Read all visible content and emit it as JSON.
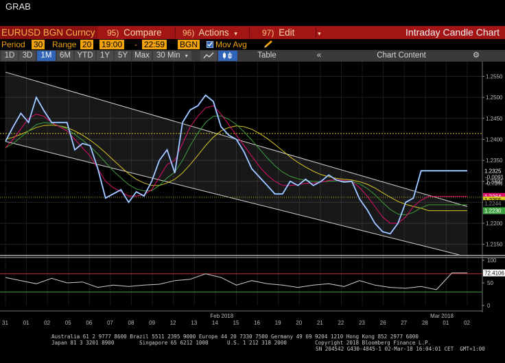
{
  "window": {
    "title": "GRAB"
  },
  "command_bar": {
    "security": "EURUSD BGN Curncy",
    "compare": {
      "num": "95)",
      "label": "Compare"
    },
    "actions": {
      "num": "96)",
      "label": "Actions"
    },
    "edit": {
      "num": "97)",
      "label": "Edit"
    },
    "chart_name": "Intraday Candle Chart"
  },
  "params": {
    "period_label": "Period",
    "period_value": "30",
    "range_label": "Range",
    "range_value": "20",
    "time_start": "19:00",
    "time_dash": "-",
    "time_end": "22:59",
    "source": "BGN",
    "mov_avg_label": "Mov Avg",
    "mov_avg_checked": true
  },
  "toolbar": {
    "buttons": [
      "1D",
      "3D",
      "1M",
      "6M",
      "YTD",
      "1Y",
      "5Y",
      "Max"
    ],
    "active": "1M",
    "interval": "30 Min",
    "table": "Table",
    "chart_content": "Chart Content"
  },
  "chart_data": {
    "type": "line",
    "security": "EURUSD BGN Curncy",
    "main_panel": {
      "yticks": [
        "1.2550",
        "1.2500",
        "1.2450",
        "1.2400",
        "1.2350",
        "1.2300",
        "1.2250",
        "1.2200",
        "1.2150"
      ],
      "ylim": [
        1.2125,
        1.2585
      ],
      "last_price": "1.2325",
      "net_change": "-0.0091",
      "pct_change": "-0.73%",
      "ma_tags": [
        "1.2264",
        "1.2255",
        "1.2244",
        "1.2230"
      ],
      "reference_lines": [
        1.2414,
        1.2262
      ],
      "x": [
        0,
        0.5,
        1,
        1.5,
        2,
        2.5,
        3,
        3.5,
        4,
        4.5,
        5,
        5.5,
        6,
        6.5,
        7,
        7.5,
        8,
        8.5,
        9,
        9.5,
        10,
        10.5,
        11,
        11.5,
        12,
        12.5,
        13,
        13.5,
        14,
        14.5,
        15,
        15.5,
        16,
        16.5,
        17,
        17.5,
        18,
        18.5,
        19,
        19.5,
        20,
        20.5,
        21,
        21.5,
        22,
        22.5,
        23,
        23.5,
        24,
        24.5,
        25,
        25.5,
        26,
        26.5,
        27,
        27.5,
        28,
        28.5,
        29,
        29.5,
        30
      ],
      "price": [
        1.2395,
        1.243,
        1.2462,
        1.244,
        1.25,
        1.2468,
        1.244,
        1.244,
        1.244,
        1.2375,
        1.239,
        1.2385,
        1.233,
        1.226,
        1.227,
        1.228,
        1.225,
        1.2275,
        1.2265,
        1.23,
        1.235,
        1.2375,
        1.232,
        1.244,
        1.247,
        1.248,
        1.2505,
        1.249,
        1.243,
        1.241,
        1.24,
        1.237,
        1.233,
        1.231,
        1.229,
        1.227,
        1.227,
        1.23,
        1.229,
        1.2305,
        1.229,
        1.23,
        1.2315,
        1.2303,
        1.2298,
        1.23,
        1.2258,
        1.2232,
        1.22,
        1.218,
        1.2175,
        1.22,
        1.225,
        1.226,
        1.2325,
        1.2325,
        1.2325,
        1.2325,
        1.2325,
        1.2325,
        1.2325
      ],
      "ma_fast": [
        1.238,
        1.24,
        1.2425,
        1.245,
        1.246,
        1.2455,
        1.244,
        1.243,
        1.242,
        1.24,
        1.238,
        1.236,
        1.233,
        1.23,
        1.2285,
        1.2275,
        1.2265,
        1.2265,
        1.2268,
        1.228,
        1.231,
        1.234,
        1.235,
        1.239,
        1.243,
        1.2455,
        1.2475,
        1.248,
        1.246,
        1.2435,
        1.241,
        1.2385,
        1.236,
        1.2335,
        1.2315,
        1.23,
        1.229,
        1.229,
        1.2292,
        1.2295,
        1.2296,
        1.2298,
        1.2302,
        1.2304,
        1.2302,
        1.23,
        1.2285,
        1.2265,
        1.224,
        1.2215,
        1.22,
        1.22,
        1.2215,
        1.224,
        1.2255,
        1.2264,
        1.2264,
        1.2264,
        1.2264,
        1.2264,
        1.2264
      ],
      "ma_mid": [
        1.238,
        1.239,
        1.2405,
        1.242,
        1.2435,
        1.244,
        1.2438,
        1.2432,
        1.2425,
        1.2412,
        1.2398,
        1.2383,
        1.2365,
        1.2345,
        1.2325,
        1.2308,
        1.2292,
        1.2282,
        1.2277,
        1.2278,
        1.229,
        1.2308,
        1.2322,
        1.235,
        1.2385,
        1.2415,
        1.244,
        1.2455,
        1.2456,
        1.2448,
        1.2435,
        1.2418,
        1.2398,
        1.2377,
        1.2356,
        1.2337,
        1.2322,
        1.2312,
        1.2306,
        1.2302,
        1.23,
        1.2299,
        1.23,
        1.2301,
        1.2301,
        1.23,
        1.2294,
        1.2283,
        1.2268,
        1.225,
        1.2233,
        1.2222,
        1.222,
        1.2226,
        1.2237,
        1.2244,
        1.2244,
        1.2244,
        1.2244,
        1.2244,
        1.2244
      ],
      "ma_slow": [
        1.24,
        1.2405,
        1.2412,
        1.242,
        1.2428,
        1.2433,
        1.2434,
        1.2432,
        1.2428,
        1.242,
        1.241,
        1.2398,
        1.2384,
        1.2368,
        1.2351,
        1.2334,
        1.2318,
        1.2305,
        1.2296,
        1.229,
        1.229,
        1.2296,
        1.2305,
        1.232,
        1.234,
        1.2362,
        1.2385,
        1.2405,
        1.242,
        1.2428,
        1.2432,
        1.243,
        1.2424,
        1.2414,
        1.2402,
        1.2388,
        1.2373,
        1.2358,
        1.2345,
        1.2334,
        1.2324,
        1.2316,
        1.2311,
        1.2307,
        1.2305,
        1.2303,
        1.2299,
        1.2293,
        1.2284,
        1.2273,
        1.2262,
        1.2252,
        1.2245,
        1.224,
        1.2236,
        1.223,
        1.223,
        1.223,
        1.223,
        1.223,
        1.223
      ],
      "ma_colors": [
        "#e0106e",
        "#3fa03f",
        "#d8c820"
      ],
      "channel": {
        "upper": [
          [
            0,
            1.256
          ],
          [
            30,
            1.224
          ]
        ],
        "lower": [
          [
            0,
            1.2395
          ],
          [
            30,
            1.212
          ]
        ]
      }
    },
    "rsi_panel": {
      "yticks": [
        "100",
        "50",
        "0"
      ],
      "ylim": [
        0,
        100
      ],
      "last": "72.4106",
      "overbought": 70,
      "oversold": 30,
      "x": [
        0,
        1,
        2,
        3,
        4,
        5,
        6,
        7,
        8,
        9,
        10,
        11,
        12,
        13,
        14,
        15,
        16,
        17,
        18,
        19,
        20,
        21,
        22,
        23,
        24,
        25,
        26,
        27,
        28,
        29,
        30
      ],
      "values": [
        62,
        55,
        48,
        60,
        50,
        52,
        40,
        45,
        42,
        45,
        47,
        55,
        58,
        70,
        62,
        45,
        55,
        48,
        45,
        40,
        45,
        48,
        42,
        55,
        45,
        40,
        38,
        42,
        35,
        72,
        72
      ]
    },
    "x_tick_labels": [
      "31",
      "01",
      "02",
      "05",
      "06",
      "07",
      "08",
      "09",
      "12",
      "13",
      "14",
      "15",
      "16",
      "19",
      "20",
      "21",
      "22",
      "23",
      "26",
      "27",
      "28",
      "01",
      "02"
    ],
    "x_month_labels": [
      "Feb 2018",
      "Mar 2018"
    ]
  },
  "footer": {
    "line1": "Australia 61 2 9777 8600 Brazil 5511 2395 9000 Europe 44 20 7330 7500 Germany 49 69 9204 1210 Hong Kong 852 2977 6000",
    "line2": "Japan 81 3 3201 8900        Singapore 65 6212 1000      U.S. 1 212 318 2000         Copyright 2018 Bloomberg Finance L.P.",
    "line3": "SN 204542 G430-4845-1 02-Mar-18 16:04:01 CET  GMT+1:00"
  }
}
